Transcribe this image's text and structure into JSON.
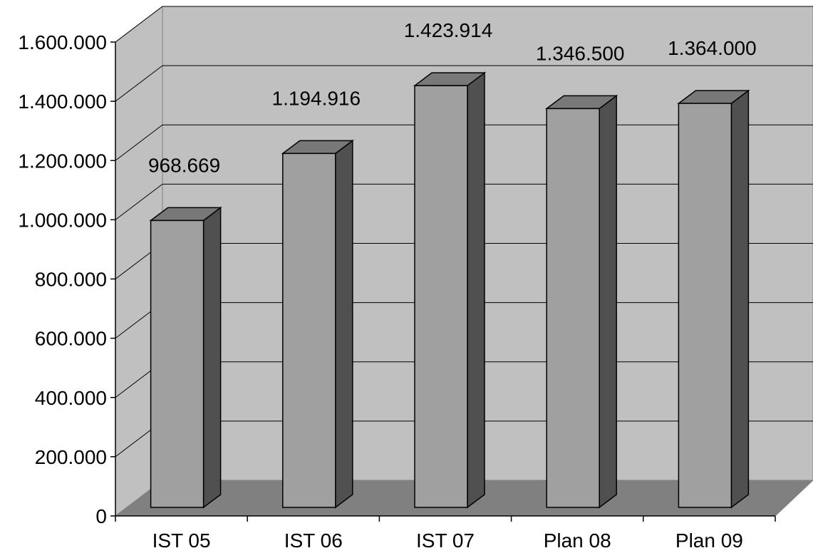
{
  "chart_data": {
    "type": "bar",
    "style": "3d-column",
    "title": "",
    "xlabel": "",
    "ylabel": "",
    "categories": [
      "IST 05",
      "IST 06",
      "IST 07",
      "Plan 08",
      "Plan 09"
    ],
    "series": [
      {
        "values": [
          968669,
          1194916,
          1423914,
          1346500,
          1364000
        ]
      }
    ],
    "data_labels": [
      "968.669",
      "1.194.916",
      "1.423.914",
      "1.346.500",
      "1.364.000"
    ],
    "ylim": [
      0,
      1600000
    ],
    "y_ticks": [
      0,
      200000,
      400000,
      600000,
      800000,
      1000000,
      1200000,
      1400000,
      1600000
    ],
    "y_tick_labels": [
      "0",
      "200.000",
      "400.000",
      "600.000",
      "800.000",
      "1.000.000",
      "1.200.000",
      "1.400.000",
      "1.600.000"
    ],
    "grid": true,
    "legend": "none",
    "colors": {
      "wall": "#c0c0c0",
      "floor": "#808080",
      "bar_front": "#a0a0a0",
      "bar_top": "#787878",
      "bar_side": "#505050",
      "grid": "#000000"
    }
  }
}
